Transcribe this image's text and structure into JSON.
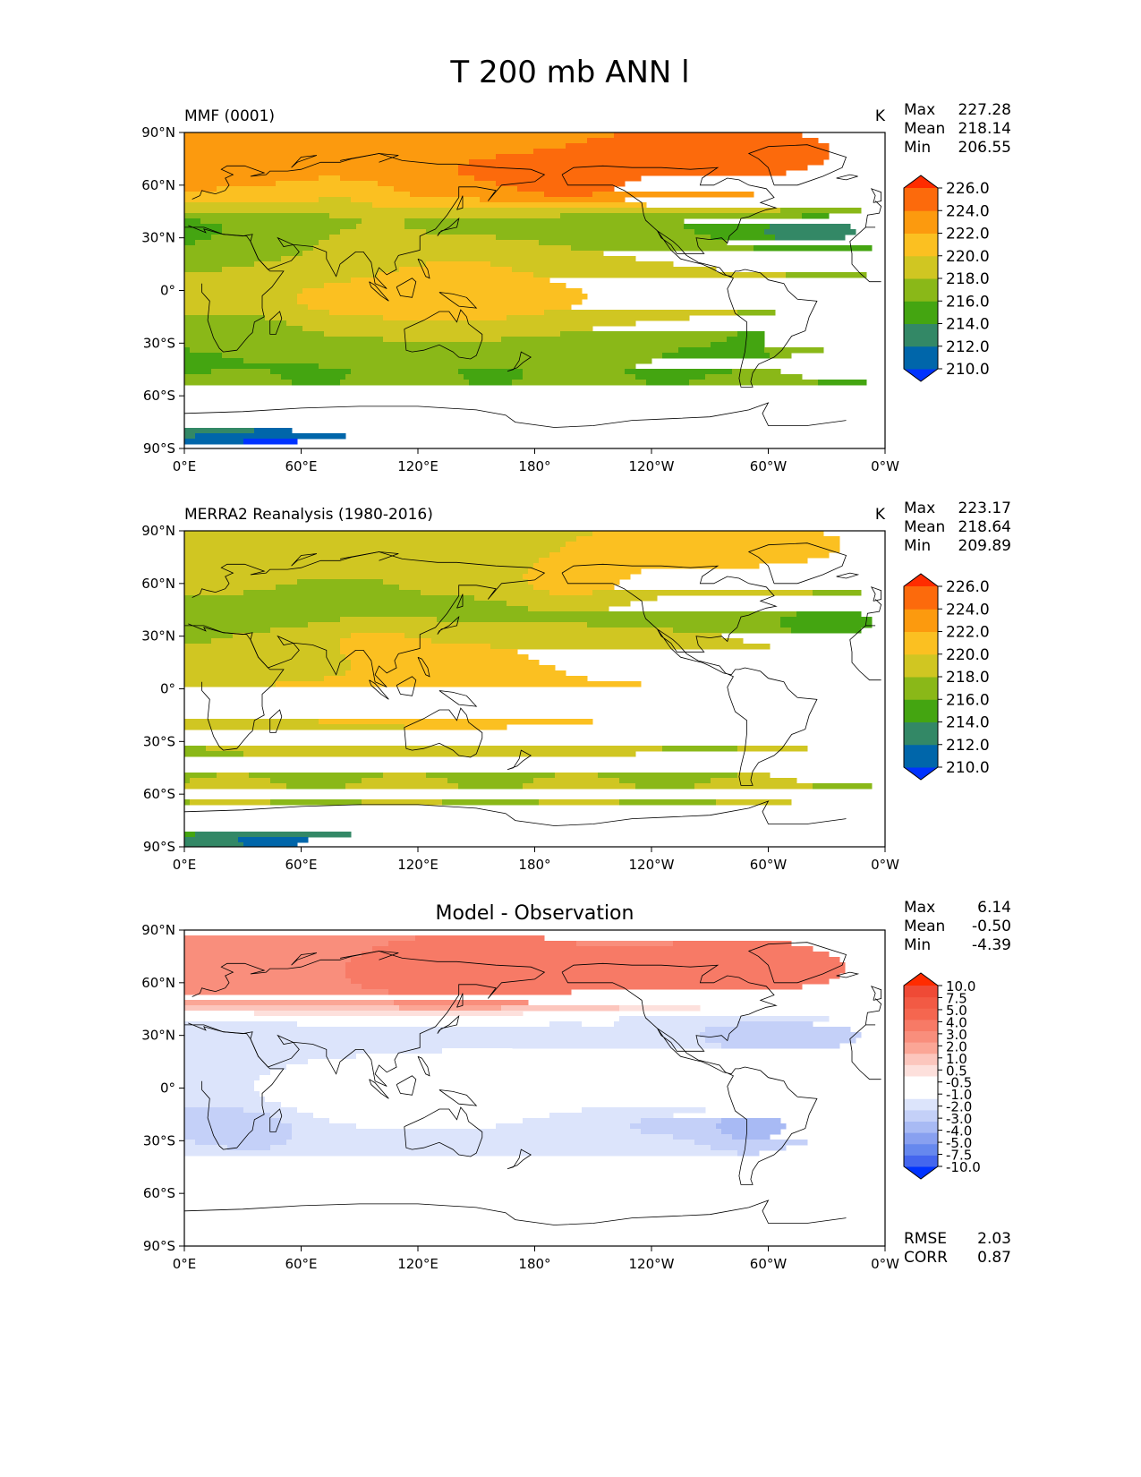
{
  "figure": {
    "title": "T 200 mb ANN l"
  },
  "colors": {
    "abs_levels": [
      "#0033ff",
      "#0066aa",
      "#338866",
      "#44a511",
      "#8ab818",
      "#d0c622",
      "#fbc021",
      "#fc9a0e",
      "#fc6a0c",
      "#ff2c00"
    ],
    "diff_levels": [
      "#0033ff",
      "#4466ee",
      "#6688ee",
      "#88a0f0",
      "#a8baf4",
      "#c4d0f8",
      "#dce4fb",
      "#ffffff",
      "#ffffff",
      "#fde0dc",
      "#fcc6bd",
      "#fba696",
      "#f98e7c",
      "#f77a66",
      "#f5664f",
      "#f25a44",
      "#ef4a36",
      "#ff2c00"
    ],
    "coastline": "#000000"
  },
  "chart_data": [
    {
      "type": "heatmap",
      "title": "",
      "left_label": "MMF (0001)",
      "units": "K",
      "stats": {
        "max_label": "Max",
        "max": "227.28",
        "mean_label": "Mean",
        "mean": "218.14",
        "min_label": "Min",
        "min": "206.55"
      },
      "colorbar": {
        "palette": "abs_levels",
        "ticks": [
          "226.0",
          "224.0",
          "222.0",
          "220.0",
          "218.0",
          "216.0",
          "214.0",
          "212.0",
          "210.0"
        ]
      },
      "field": "mmf",
      "x_ticks": [
        "0°E",
        "60°E",
        "120°E",
        "180°",
        "120°W",
        "60°W",
        "0°W"
      ],
      "y_ticks": [
        "90°N",
        "60°N",
        "30°N",
        "0°",
        "30°S",
        "60°S",
        "90°S"
      ],
      "xlim": [
        0,
        360
      ],
      "ylim": [
        -90,
        90
      ]
    },
    {
      "type": "heatmap",
      "title": "",
      "left_label": "MERRA2 Reanalysis (1980-2016)",
      "units": "K",
      "stats": {
        "max_label": "Max",
        "max": "223.17",
        "mean_label": "Mean",
        "mean": "218.64",
        "min_label": "Min",
        "min": "209.89"
      },
      "colorbar": {
        "palette": "abs_levels",
        "ticks": [
          "226.0",
          "224.0",
          "222.0",
          "220.0",
          "218.0",
          "216.0",
          "214.0",
          "212.0",
          "210.0"
        ]
      },
      "field": "obs",
      "x_ticks": [
        "0°E",
        "60°E",
        "120°E",
        "180°",
        "120°W",
        "60°W",
        "0°W"
      ],
      "y_ticks": [
        "90°N",
        "60°N",
        "30°N",
        "0°",
        "30°S",
        "60°S",
        "90°S"
      ],
      "xlim": [
        0,
        360
      ],
      "ylim": [
        -90,
        90
      ]
    },
    {
      "type": "heatmap",
      "title": "Model - Observation",
      "left_label": "",
      "units": "",
      "stats": {
        "max_label": "Max",
        "max": "6.14",
        "mean_label": "Mean",
        "mean": "-0.50",
        "min_label": "Min",
        "min": "-4.39"
      },
      "colorbar": {
        "palette": "diff_levels",
        "ticks": [
          "10.0",
          "7.5",
          "5.0",
          "4.0",
          "3.0",
          "2.0",
          "1.0",
          "0.5",
          "-0.5",
          "-1.0",
          "-2.0",
          "-3.0",
          "-4.0",
          "-5.0",
          "-7.5",
          "-10.0"
        ]
      },
      "field": "diff",
      "metrics": {
        "rmse_label": "RMSE",
        "rmse": "2.03",
        "corr_label": "CORR",
        "corr": "0.87"
      },
      "x_ticks": [
        "0°E",
        "60°E",
        "120°E",
        "180°",
        "120°W",
        "60°W",
        "0°W"
      ],
      "y_ticks": [
        "90°N",
        "60°N",
        "30°N",
        "0°",
        "30°S",
        "60°S",
        "90°S"
      ],
      "xlim": [
        0,
        360
      ],
      "ylim": [
        -90,
        90
      ]
    }
  ]
}
